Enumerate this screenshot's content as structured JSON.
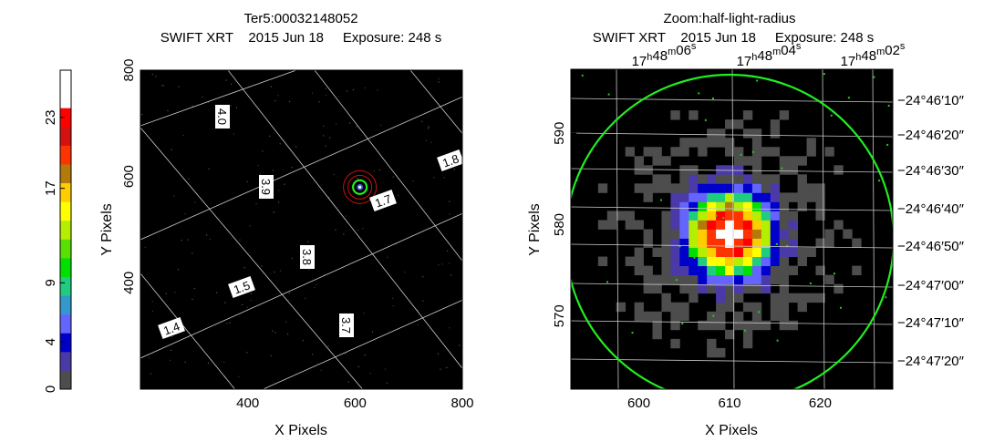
{
  "colorbar": {
    "ticks": [
      {
        "value": 0,
        "label": "0"
      },
      {
        "value": 4,
        "label": "4"
      },
      {
        "value": 9,
        "label": "9"
      },
      {
        "value": 17,
        "label": "17"
      },
      {
        "value": 23,
        "label": "23"
      }
    ],
    "colors": [
      "#4d4d4d",
      "#4a3aa8",
      "#0000cc",
      "#6464ff",
      "#3399cc",
      "#1fcc80",
      "#00e000",
      "#5ae000",
      "#b4ee00",
      "#ffff00",
      "#ffcc00",
      "#b3790a",
      "#ff3300",
      "#d41010",
      "#ff0000",
      "#ffffff",
      "#ffffff"
    ]
  },
  "chart_data": [
    {
      "type": "heatmap",
      "title": "Ter5:00032148052",
      "subtitle": "SWIFT XRT    2015 Jun 18     Exposure: 248 s",
      "xlabel": "X Pixels",
      "ylabel": "Y Pixels",
      "xlim": [
        200,
        800
      ],
      "ylim": [
        200,
        800
      ],
      "x_ticks": [
        400,
        600,
        800
      ],
      "y_ticks": [
        400,
        600,
        800
      ],
      "source_center": [
        609,
        580
      ],
      "grid_labels": [
        "4.0",
        "3.9",
        "3.8",
        "3.7",
        "1.8",
        "1.7",
        "1.5",
        "1.4"
      ]
    },
    {
      "type": "heatmap",
      "title": "Zoom:half-light-radius",
      "subtitle": "SWIFT XRT    2015 Jun 18     Exposure: 248 s",
      "xlabel": "X Pixels",
      "ylabel": "Y Pixels",
      "xlim": [
        592.5,
        628
      ],
      "ylim": [
        562,
        597
      ],
      "x_ticks": [
        600,
        610,
        620
      ],
      "y_ticks": [
        570,
        580,
        590
      ],
      "source_center": [
        610,
        579
      ],
      "ra_labels": [
        {
          "h": "17",
          "m": "48",
          "s": "06"
        },
        {
          "h": "17",
          "m": "48",
          "s": "04"
        },
        {
          "h": "17",
          "m": "48",
          "s": "02"
        }
      ],
      "dec_labels": [
        "−24°46′10″",
        "−24°46′20″",
        "−24°46′30″",
        "−24°46′40″",
        "−24°46′50″",
        "−24°47′00″",
        "−24°47′10″",
        "−24°47′20″"
      ]
    }
  ]
}
